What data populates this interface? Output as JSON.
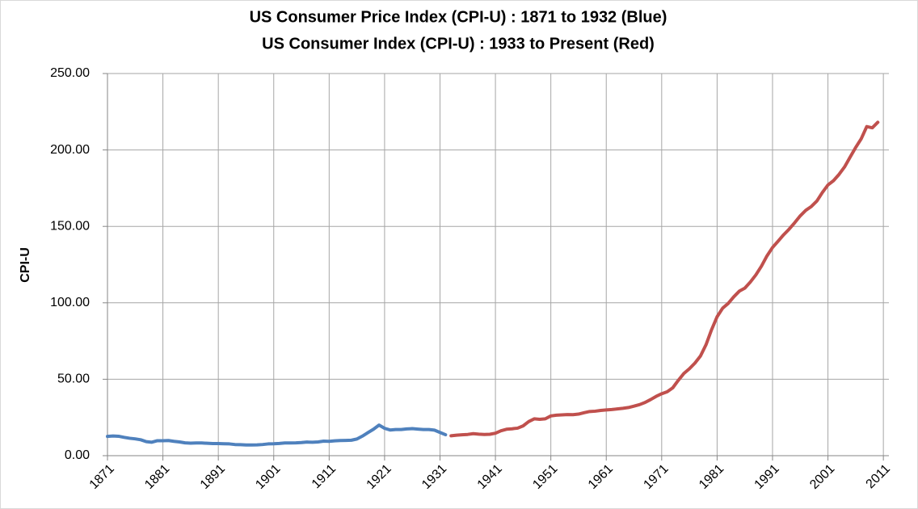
{
  "chart_data": {
    "type": "line",
    "title": "US Consumer Price Index (CPI-U) : 1871 to 1932 (Blue)",
    "subtitle": "US Consumer Index (CPI-U) : 1933 to Present (Red)",
    "y_label": "CPI-U",
    "grid": true,
    "xlim": [
      1871,
      2012
    ],
    "xticks": [
      1871,
      1881,
      1891,
      1901,
      1911,
      1921,
      1931,
      1941,
      1951,
      1961,
      1971,
      1981,
      1991,
      2001,
      2011
    ],
    "ylim": [
      0,
      250
    ],
    "yticks": [
      {
        "value": 0,
        "label": "0.00"
      },
      {
        "value": 50,
        "label": "50.00"
      },
      {
        "value": 100,
        "label": "100.00"
      },
      {
        "value": 150,
        "label": "150.00"
      },
      {
        "value": 200,
        "label": "200.00"
      },
      {
        "value": 250,
        "label": "250.00"
      }
    ],
    "x": [
      1871,
      1872,
      1873,
      1874,
      1875,
      1876,
      1877,
      1878,
      1879,
      1880,
      1881,
      1882,
      1883,
      1884,
      1885,
      1886,
      1887,
      1888,
      1889,
      1890,
      1891,
      1892,
      1893,
      1894,
      1895,
      1896,
      1897,
      1898,
      1899,
      1900,
      1901,
      1902,
      1903,
      1904,
      1905,
      1906,
      1907,
      1908,
      1909,
      1910,
      1911,
      1912,
      1913,
      1914,
      1915,
      1916,
      1917,
      1918,
      1919,
      1920,
      1921,
      1922,
      1923,
      1924,
      1925,
      1926,
      1927,
      1928,
      1929,
      1930,
      1931,
      1932,
      1933,
      1934,
      1935,
      1936,
      1937,
      1938,
      1939,
      1940,
      1941,
      1942,
      1943,
      1944,
      1945,
      1946,
      1947,
      1948,
      1949,
      1950,
      1951,
      1952,
      1953,
      1954,
      1955,
      1956,
      1957,
      1958,
      1959,
      1960,
      1961,
      1962,
      1963,
      1964,
      1965,
      1966,
      1967,
      1968,
      1969,
      1970,
      1971,
      1972,
      1973,
      1974,
      1975,
      1976,
      1977,
      1978,
      1979,
      1980,
      1981,
      1982,
      1983,
      1984,
      1985,
      1986,
      1987,
      1988,
      1989,
      1990,
      1991,
      1992,
      1993,
      1994,
      1995,
      1996,
      1997,
      1998,
      1999,
      2000,
      2001,
      2002,
      2003,
      2004,
      2005,
      2006,
      2007,
      2008,
      2009,
      2010
    ],
    "series": [
      {
        "color": "#4f81bd",
        "values": [
          12.6,
          12.9,
          12.7,
          12.0,
          11.4,
          11.0,
          10.4,
          9.2,
          8.8,
          9.8,
          9.8,
          9.9,
          9.4,
          9.0,
          8.4,
          8.2,
          8.3,
          8.3,
          8.1,
          7.9,
          7.9,
          7.8,
          7.7,
          7.3,
          7.2,
          7.0,
          7.0,
          7.1,
          7.3,
          7.7,
          7.8,
          8.0,
          8.3,
          8.3,
          8.4,
          8.6,
          8.9,
          8.8,
          9.0,
          9.5,
          9.4,
          9.7,
          9.9,
          10.0,
          10.1,
          10.9,
          12.8,
          15.1,
          17.3,
          20.0,
          17.9,
          16.8,
          17.1,
          17.1,
          17.5,
          17.7,
          17.4,
          17.1,
          17.1,
          16.7,
          15.2,
          13.7,
          null,
          null,
          null,
          null,
          null,
          null,
          null,
          null,
          null,
          null,
          null,
          null,
          null,
          null,
          null,
          null,
          null,
          null,
          null,
          null,
          null,
          null,
          null,
          null,
          null,
          null,
          null,
          null,
          null,
          null,
          null,
          null,
          null,
          null,
          null,
          null,
          null,
          null,
          null,
          null,
          null,
          null,
          null,
          null,
          null,
          null,
          null,
          null,
          null,
          null,
          null,
          null,
          null,
          null,
          null,
          null,
          null,
          null,
          null,
          null,
          null,
          null,
          null,
          null,
          null,
          null,
          null,
          null,
          null,
          null,
          null,
          null,
          null,
          null,
          null,
          null,
          null,
          null
        ]
      },
      {
        "color": "#c0504d",
        "values": [
          null,
          null,
          null,
          null,
          null,
          null,
          null,
          null,
          null,
          null,
          null,
          null,
          null,
          null,
          null,
          null,
          null,
          null,
          null,
          null,
          null,
          null,
          null,
          null,
          null,
          null,
          null,
          null,
          null,
          null,
          null,
          null,
          null,
          null,
          null,
          null,
          null,
          null,
          null,
          null,
          null,
          null,
          null,
          null,
          null,
          null,
          null,
          null,
          null,
          null,
          null,
          null,
          null,
          null,
          null,
          null,
          null,
          null,
          null,
          null,
          null,
          null,
          13.0,
          13.4,
          13.7,
          13.9,
          14.4,
          14.1,
          13.9,
          14.0,
          14.7,
          16.3,
          17.3,
          17.6,
          18.0,
          19.5,
          22.3,
          24.1,
          23.8,
          24.1,
          26.0,
          26.5,
          26.7,
          26.9,
          26.8,
          27.2,
          28.1,
          28.9,
          29.1,
          29.6,
          29.9,
          30.2,
          30.6,
          31.0,
          31.5,
          32.4,
          33.4,
          34.8,
          36.7,
          38.8,
          40.5,
          41.8,
          44.4,
          49.3,
          53.8,
          56.9,
          60.6,
          65.2,
          72.6,
          82.4,
          90.9,
          96.5,
          99.6,
          103.9,
          107.6,
          109.6,
          113.6,
          118.3,
          124.0,
          130.7,
          136.2,
          140.3,
          144.5,
          148.2,
          152.4,
          156.9,
          160.5,
          163.0,
          166.6,
          172.2,
          177.1,
          179.9,
          184.0,
          188.9,
          195.3,
          201.6,
          207.3,
          215.3,
          214.5,
          218.1
        ]
      }
    ]
  }
}
